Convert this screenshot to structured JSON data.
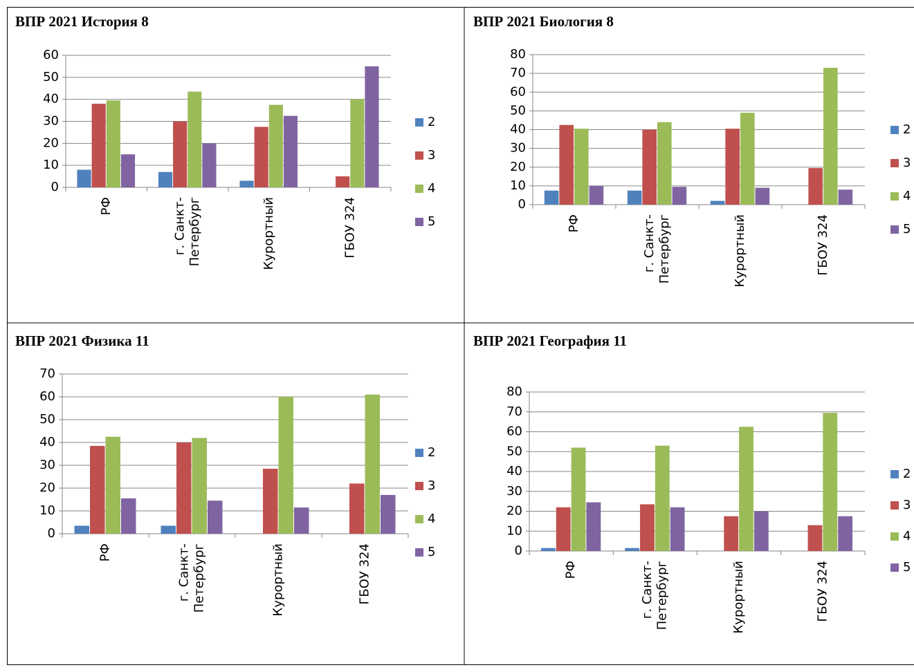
{
  "chart_data": [
    {
      "type": "bar",
      "title": "ВПР 2021 История 8",
      "categories": [
        "РФ",
        "г. Санкт-Петербург",
        "Курортный",
        "ГБОУ 324"
      ],
      "series": [
        {
          "name": "2",
          "color": "#4f81bd",
          "values": [
            8,
            7,
            3,
            0
          ]
        },
        {
          "name": "3",
          "color": "#c0504d",
          "values": [
            38,
            30,
            27.5,
            5
          ]
        },
        {
          "name": "4",
          "color": "#9bbb59",
          "values": [
            39.5,
            43.5,
            37.5,
            40
          ]
        },
        {
          "name": "5",
          "color": "#8064a2",
          "values": [
            15,
            20,
            32.5,
            55
          ]
        }
      ],
      "ylim": [
        0,
        60
      ],
      "yticks": [
        0,
        10,
        20,
        30,
        40,
        50,
        60
      ],
      "grid": true,
      "legend": "right"
    },
    {
      "type": "bar",
      "title": "ВПР 2021 Биология 8",
      "categories": [
        "РФ",
        "г. Санкт-Петербург",
        "Курортный",
        "ГБОУ 324"
      ],
      "series": [
        {
          "name": "2",
          "color": "#4f81bd",
          "values": [
            7.5,
            7.5,
            2,
            0
          ]
        },
        {
          "name": "3",
          "color": "#c0504d",
          "values": [
            42.5,
            40,
            40.5,
            19.5
          ]
        },
        {
          "name": "4",
          "color": "#9bbb59",
          "values": [
            40.5,
            44,
            49,
            73
          ]
        },
        {
          "name": "5",
          "color": "#8064a2",
          "values": [
            10,
            9.5,
            9,
            8
          ]
        }
      ],
      "ylim": [
        0,
        80
      ],
      "yticks": [
        0,
        10,
        20,
        30,
        40,
        50,
        60,
        70,
        80
      ],
      "grid": true,
      "legend": "right"
    },
    {
      "type": "bar",
      "title": "ВПР 2021 Физика 11",
      "categories": [
        "РФ",
        "г. Санкт-Петербург",
        "Курортный",
        "ГБОУ 324"
      ],
      "series": [
        {
          "name": "2",
          "color": "#4f81bd",
          "values": [
            3.5,
            3.5,
            0,
            0
          ]
        },
        {
          "name": "3",
          "color": "#c0504d",
          "values": [
            38.5,
            40,
            28.5,
            22
          ]
        },
        {
          "name": "4",
          "color": "#9bbb59",
          "values": [
            42.5,
            42,
            60,
            61
          ]
        },
        {
          "name": "5",
          "color": "#8064a2",
          "values": [
            15.5,
            14.5,
            11.5,
            17
          ]
        }
      ],
      "ylim": [
        0,
        70
      ],
      "yticks": [
        0,
        10,
        20,
        30,
        40,
        50,
        60,
        70
      ],
      "grid": true,
      "legend": "right"
    },
    {
      "type": "bar",
      "title": "ВПР 2021 География 11",
      "categories": [
        "РФ",
        "г. Санкт-Петербург",
        "Курортный",
        "ГБОУ 324"
      ],
      "series": [
        {
          "name": "2",
          "color": "#4f81bd",
          "values": [
            1.5,
            1.5,
            0,
            0
          ]
        },
        {
          "name": "3",
          "color": "#c0504d",
          "values": [
            22,
            23.5,
            17.5,
            13
          ]
        },
        {
          "name": "4",
          "color": "#9bbb59",
          "values": [
            52,
            53,
            62.5,
            69.5
          ]
        },
        {
          "name": "5",
          "color": "#8064a2",
          "values": [
            24.5,
            22,
            20,
            17.5
          ]
        }
      ],
      "ylim": [
        0,
        80
      ],
      "yticks": [
        0,
        10,
        20,
        30,
        40,
        50,
        60,
        70,
        80
      ],
      "grid": true,
      "legend": "right"
    }
  ]
}
